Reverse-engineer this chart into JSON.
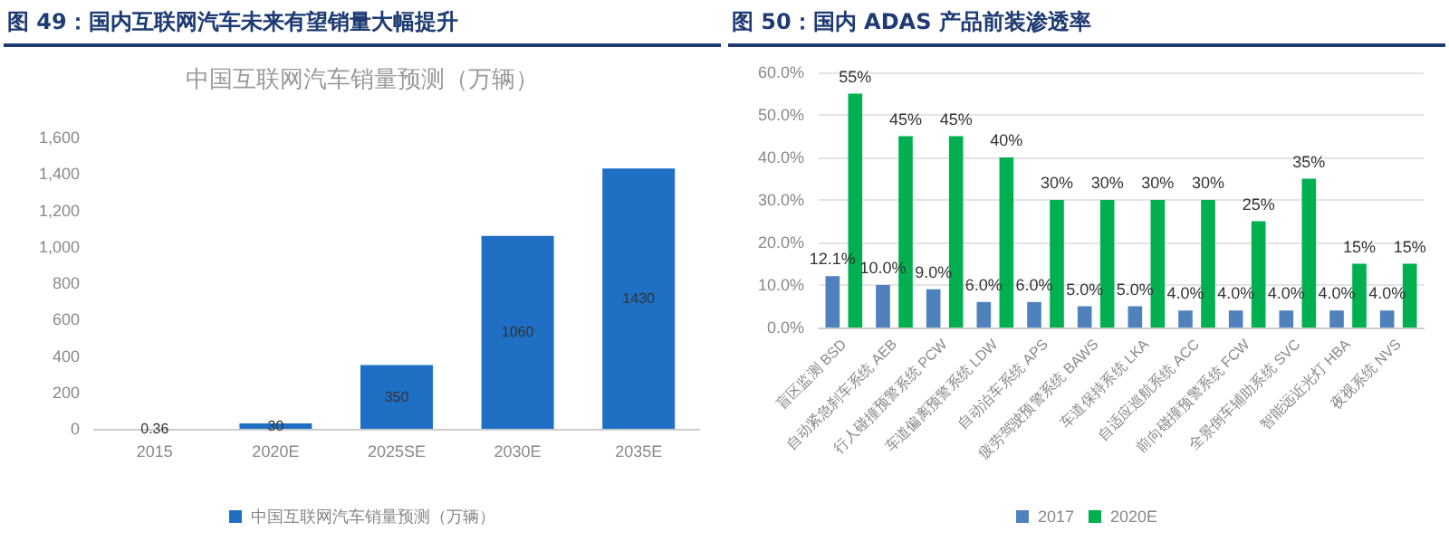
{
  "chart_data": [
    {
      "type": "bar",
      "title": "图 49：国内互联网汽车未来有望销量大幅提升",
      "subtitle": "中国互联网汽车销量预测（万辆）",
      "categories": [
        "2015",
        "2020E",
        "2025SE",
        "2030E",
        "2035E"
      ],
      "series": [
        {
          "name": "中国互联网汽车销量预测（万辆）",
          "color": "#1f6fc5",
          "values": [
            0.36,
            30,
            350,
            1060,
            1430
          ]
        }
      ],
      "ylim": [
        0,
        1600
      ],
      "yticks": [
        0,
        200,
        400,
        600,
        800,
        {
          "value": 1000,
          "label": "1,000"
        },
        {
          "value": 1200,
          "label": "1,200"
        },
        {
          "value": 1400,
          "label": "1,400"
        },
        {
          "value": 1600,
          "label": "1,600"
        }
      ],
      "grid": false,
      "legend": "bottom",
      "data_labels": true
    },
    {
      "type": "bar",
      "title": "图 50：国内 ADAS 产品前装渗透率",
      "categories": [
        "盲区监测 BSD",
        "自动紧急刹车系统 AEB",
        "行人碰撞预警系统 PCW",
        "车道偏离预警系统 LDW",
        "自动泊车系统 APS",
        "疲劳驾驶预警系统 BAWS",
        "车道保持系统 LKA",
        "自适应巡航系统 ACC",
        "前向碰撞预警系统 FCW",
        "全景倒车辅助系统 SVC",
        "智能远近光灯 HBA",
        "夜视系统 NVS"
      ],
      "series": [
        {
          "name": "2017",
          "color": "#4f81bd",
          "values": [
            12.1,
            10,
            9,
            6,
            6,
            5,
            5,
            4,
            4,
            4,
            4,
            4
          ],
          "value_labels": [
            "12.1%",
            "10.0%",
            "9.0%",
            "6.0%",
            "6.0%",
            "5.0%",
            "5.0%",
            "4.0%",
            "4.0%",
            "4.0%",
            "4.0%",
            "4.0%"
          ]
        },
        {
          "name": "2020E",
          "color": "#00b050",
          "values": [
            55,
            45,
            45,
            40,
            30,
            30,
            30,
            30,
            25,
            35,
            15,
            15
          ],
          "value_labels": [
            "55%",
            "45%",
            "45%",
            "40%",
            "30%",
            "30%",
            "30%",
            "30%",
            "25%",
            "35%",
            "15%",
            "15%"
          ]
        }
      ],
      "ylim": [
        0,
        60
      ],
      "yticks": [
        {
          "value": 0,
          "label": "0.0%"
        },
        {
          "value": 10,
          "label": "10.0%"
        },
        {
          "value": 20,
          "label": "20.0%"
        },
        {
          "value": 30,
          "label": "30.0%"
        },
        {
          "value": 40,
          "label": "40.0%"
        },
        {
          "value": 50,
          "label": "50.0%"
        },
        {
          "value": 60,
          "label": "60.0%"
        }
      ],
      "grid": "y",
      "legend": "bottom"
    }
  ]
}
